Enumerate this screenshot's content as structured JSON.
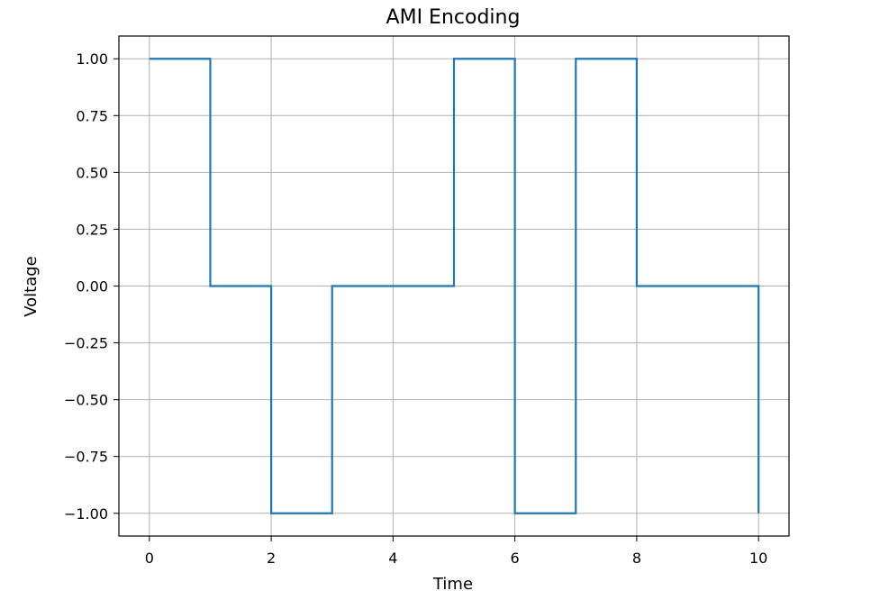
{
  "chart_data": {
    "type": "line",
    "title": "AMI Encoding",
    "xlabel": "Time",
    "ylabel": "Voltage",
    "xlim": [
      -0.5,
      10.5
    ],
    "ylim": [
      -1.1,
      1.1
    ],
    "xticks": [
      0,
      2,
      4,
      6,
      8,
      10
    ],
    "xtick_labels": [
      "0",
      "2",
      "4",
      "6",
      "8",
      "10"
    ],
    "yticks": [
      1.0,
      0.75,
      0.5,
      0.25,
      0.0,
      -0.25,
      -0.5,
      -0.75,
      -1.0
    ],
    "ytick_labels": [
      "1.00",
      "0.75",
      "0.50",
      "0.25",
      "0.00",
      "−0.25",
      "−0.50",
      "−0.75",
      "−1.00"
    ],
    "grid": true,
    "step": "post",
    "series": [
      {
        "color": "#1f77b4",
        "x": [
          0,
          1,
          2,
          3,
          4,
          5,
          6,
          7,
          8,
          9,
          10
        ],
        "y": [
          1,
          0,
          -1,
          0,
          0,
          1,
          -1,
          1,
          0,
          0,
          -1
        ]
      }
    ]
  }
}
